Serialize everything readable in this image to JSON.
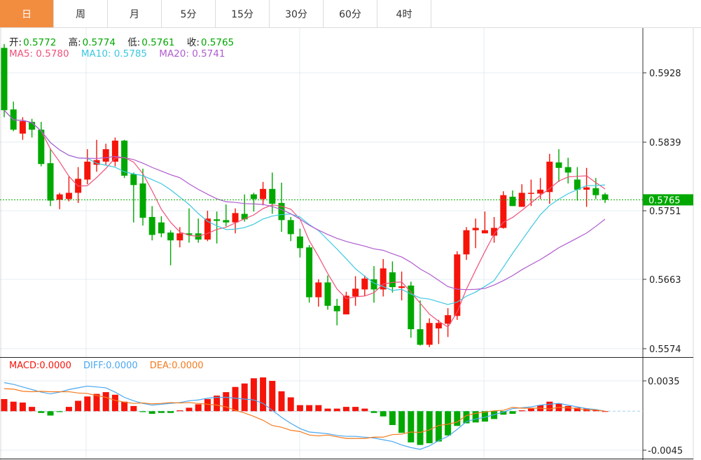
{
  "tabs": [
    {
      "label": "日",
      "active": true
    },
    {
      "label": "周"
    },
    {
      "label": "月"
    },
    {
      "label": "5分"
    },
    {
      "label": "15分"
    },
    {
      "label": "30分"
    },
    {
      "label": "60分"
    },
    {
      "label": "4时"
    }
  ],
  "ohlc_legend": {
    "open_label": "开:",
    "open": "0.5772",
    "high_label": "高:",
    "high": "0.5774",
    "low_label": "低:",
    "low": "0.5761",
    "close_label": "收:",
    "close": "0.5765"
  },
  "ma_legend": {
    "ma5": "MA5: 0.5780",
    "ma10": "MA10: 0.5785",
    "ma20": "MA20: 0.5741"
  },
  "macd_legend": {
    "macd": "MACD:0.0000",
    "diff": "DIFF:0.0000",
    "dea": "DEA:0.0000"
  },
  "colors": {
    "active_tab": "#f28d40",
    "up": "#f5140a",
    "down": "#00a800",
    "ma5": "#f0507a",
    "ma10": "#3cc8e0",
    "ma20": "#b05ccf",
    "diff": "#4aa8f0",
    "dea": "#f57a1e"
  },
  "chart_data": {
    "type": "candlestick",
    "price_axis": {
      "ticks": [
        "0.5928",
        "0.5839",
        "0.5751",
        "0.5663",
        "0.5574"
      ],
      "range": [
        0.556,
        0.597
      ]
    },
    "last_price": "0.5765",
    "macd_axis": {
      "ticks": [
        "0.0035",
        "-0.0045"
      ],
      "range": [
        -0.0052,
        0.0053
      ]
    },
    "candles": [
      [
        0.596,
        0.5965,
        0.5871,
        0.588
      ],
      [
        0.5881,
        0.5891,
        0.5853,
        0.5855
      ],
      [
        0.585,
        0.5871,
        0.5842,
        0.5866
      ],
      [
        0.5865,
        0.5869,
        0.5845,
        0.5855
      ],
      [
        0.5855,
        0.5865,
        0.5808,
        0.5811
      ],
      [
        0.5812,
        0.5831,
        0.5757,
        0.5764
      ],
      [
        0.5765,
        0.5774,
        0.5753,
        0.5772
      ],
      [
        0.5766,
        0.5795,
        0.5763,
        0.5774
      ],
      [
        0.5774,
        0.5807,
        0.5761,
        0.5792
      ],
      [
        0.5791,
        0.583,
        0.5785,
        0.5814
      ],
      [
        0.581,
        0.5842,
        0.5801,
        0.5816
      ],
      [
        0.5814,
        0.5837,
        0.581,
        0.583
      ],
      [
        0.5814,
        0.5845,
        0.5808,
        0.5841
      ],
      [
        0.5841,
        0.5842,
        0.5793,
        0.5796
      ],
      [
        0.5798,
        0.58,
        0.5736,
        0.5784
      ],
      [
        0.5786,
        0.5805,
        0.5732,
        0.5742
      ],
      [
        0.5743,
        0.5757,
        0.5713,
        0.572
      ],
      [
        0.5736,
        0.5744,
        0.5717,
        0.5722
      ],
      [
        0.5723,
        0.5726,
        0.5681,
        0.5713
      ],
      [
        0.5713,
        0.573,
        0.5704,
        0.5722
      ],
      [
        0.5722,
        0.5754,
        0.571,
        0.572
      ],
      [
        0.5722,
        0.5741,
        0.571,
        0.5714
      ],
      [
        0.5714,
        0.5751,
        0.5712,
        0.5741
      ],
      [
        0.574,
        0.575,
        0.5709,
        0.5738
      ],
      [
        0.5739,
        0.5759,
        0.5731,
        0.5736
      ],
      [
        0.5736,
        0.5754,
        0.5722,
        0.5748
      ],
      [
        0.5747,
        0.5772,
        0.5737,
        0.574
      ],
      [
        0.5772,
        0.5774,
        0.575,
        0.5766
      ],
      [
        0.5766,
        0.5788,
        0.5758,
        0.5779
      ],
      [
        0.5779,
        0.58,
        0.5747,
        0.576
      ],
      [
        0.5761,
        0.5787,
        0.5724,
        0.5739
      ],
      [
        0.5739,
        0.5743,
        0.5712,
        0.5721
      ],
      [
        0.5718,
        0.5728,
        0.5691,
        0.5703
      ],
      [
        0.5704,
        0.5707,
        0.5633,
        0.564
      ],
      [
        0.564,
        0.5663,
        0.5628,
        0.5659
      ],
      [
        0.5659,
        0.5668,
        0.5624,
        0.5629
      ],
      [
        0.5629,
        0.5638,
        0.5604,
        0.5622
      ],
      [
        0.5618,
        0.5647,
        0.5618,
        0.5642
      ],
      [
        0.5641,
        0.5667,
        0.5629,
        0.5651
      ],
      [
        0.565,
        0.5668,
        0.5642,
        0.5664
      ],
      [
        0.5663,
        0.568,
        0.5633,
        0.565
      ],
      [
        0.565,
        0.5689,
        0.5641,
        0.5677
      ],
      [
        0.5672,
        0.5686,
        0.5646,
        0.5653
      ],
      [
        0.5652,
        0.5673,
        0.5636,
        0.5654
      ],
      [
        0.5655,
        0.566,
        0.5588,
        0.5599
      ],
      [
        0.5599,
        0.5636,
        0.5578,
        0.5579
      ],
      [
        0.5579,
        0.5613,
        0.5576,
        0.5607
      ],
      [
        0.56,
        0.5611,
        0.558,
        0.5607
      ],
      [
        0.5606,
        0.5626,
        0.5589,
        0.5617
      ],
      [
        0.5616,
        0.5699,
        0.5611,
        0.5695
      ],
      [
        0.5695,
        0.573,
        0.5688,
        0.5726
      ],
      [
        0.5726,
        0.5741,
        0.5703,
        0.5729
      ],
      [
        0.5722,
        0.575,
        0.5722,
        0.5726
      ],
      [
        0.5719,
        0.5743,
        0.571,
        0.5729
      ],
      [
        0.5729,
        0.5776,
        0.5728,
        0.5771
      ],
      [
        0.5769,
        0.5777,
        0.5757,
        0.5757
      ],
      [
        0.5756,
        0.5785,
        0.5756,
        0.5774
      ],
      [
        0.5773,
        0.5791,
        0.5757,
        0.5774
      ],
      [
        0.5773,
        0.5793,
        0.5766,
        0.5778
      ],
      [
        0.5775,
        0.5824,
        0.576,
        0.5814
      ],
      [
        0.5813,
        0.583,
        0.5788,
        0.5806
      ],
      [
        0.5807,
        0.5819,
        0.5786,
        0.58
      ],
      [
        0.5791,
        0.5807,
        0.5764,
        0.5778
      ],
      [
        0.5778,
        0.5806,
        0.5756,
        0.5781
      ],
      [
        0.578,
        0.5793,
        0.5766,
        0.5771
      ],
      [
        0.5772,
        0.5774,
        0.5761,
        0.5765
      ]
    ],
    "macd": [
      0.0014,
      0.0011,
      0.001,
      0.0005,
      -0.0002,
      -0.0005,
      -0.0001,
      0.0005,
      0.0012,
      0.0017,
      0.002,
      0.0022,
      0.0019,
      0.0011,
      0.0006,
      -0.0001,
      -0.0003,
      -0.0002,
      -0.0002,
      0.0001,
      0.0004,
      0.0008,
      0.0014,
      0.0018,
      0.0022,
      0.0028,
      0.0032,
      0.0038,
      0.0039,
      0.0035,
      0.0023,
      0.0016,
      0.0007,
      0.0007,
      0.0007,
      0.0003,
      0.0003,
      0.0005,
      0.0005,
      0.0003,
      -0.0002,
      -0.0006,
      -0.0016,
      -0.0025,
      -0.0036,
      -0.0039,
      -0.0037,
      -0.0035,
      -0.0028,
      -0.0017,
      -0.0014,
      -0.0013,
      -0.0012,
      -0.0009,
      -0.0004,
      -0.0003,
      0.0001,
      0.0003,
      0.0007,
      0.0011,
      0.0009,
      0.0006,
      0.0004,
      0.0003,
      0.0001,
      0.0
    ],
    "diff": [
      0.0033,
      0.0031,
      0.0028,
      0.0025,
      0.0022,
      0.002,
      0.0022,
      0.0025,
      0.0027,
      0.0029,
      0.0028,
      0.0027,
      0.0022,
      0.0016,
      0.0012,
      0.0009,
      0.0007,
      0.0008,
      0.0009,
      0.001,
      0.0012,
      0.0013,
      0.0015,
      0.0016,
      0.0016,
      0.0015,
      0.0014,
      0.0013,
      0.0009,
      0.0001,
      -0.0007,
      -0.0014,
      -0.002,
      -0.0024,
      -0.0025,
      -0.0026,
      -0.0028,
      -0.0029,
      -0.0029,
      -0.003,
      -0.0031,
      -0.0033,
      -0.0035,
      -0.0039,
      -0.0042,
      -0.0044,
      -0.004,
      -0.0034,
      -0.0029,
      -0.0021,
      -0.0012,
      -0.0009,
      -0.0007,
      -0.0004,
      -0.0001,
      0.0003,
      0.0004,
      0.0005,
      0.0007,
      0.0008,
      0.0009,
      0.0007,
      0.0005,
      0.0003,
      0.0002,
      0.0
    ]
  }
}
